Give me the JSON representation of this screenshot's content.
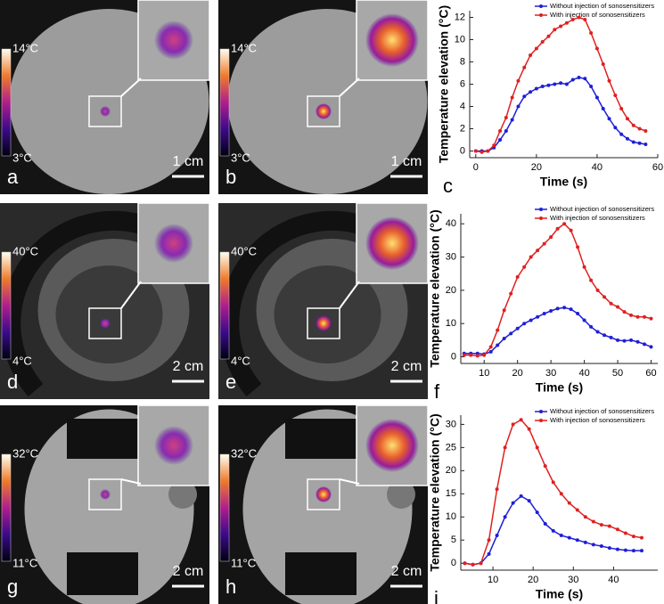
{
  "panels": [
    {
      "label": "a",
      "scale_bar": "1 cm",
      "cbar_max": "14°C",
      "cbar_min": "3°C"
    },
    {
      "label": "b",
      "scale_bar": "1 cm",
      "cbar_max": "14°C",
      "cbar_min": "3°C"
    },
    {
      "label": "d",
      "scale_bar": "2 cm",
      "cbar_max": "40°C",
      "cbar_min": "4°C"
    },
    {
      "label": "e",
      "scale_bar": "2 cm",
      "cbar_max": "40°C",
      "cbar_min": "4°C"
    },
    {
      "label": "g",
      "scale_bar": "2 cm",
      "cbar_max": "32°C",
      "cbar_min": "11°C"
    },
    {
      "label": "h",
      "scale_bar": "2 cm",
      "cbar_max": "32°C",
      "cbar_min": "11°C"
    }
  ],
  "chart_data": [
    {
      "type": "line",
      "label": "c",
      "xlabel": "Time (s)",
      "ylabel": "Temperature elevation (°C)",
      "x": [
        0,
        2,
        4,
        6,
        8,
        10,
        12,
        14,
        16,
        18,
        20,
        22,
        24,
        26,
        28,
        30,
        32,
        34,
        36,
        38,
        40,
        42,
        44,
        46,
        48,
        50,
        52,
        54,
        56
      ],
      "series": [
        {
          "name": "Without injection of sonosensitizers",
          "color": "#1f1fd6",
          "values": [
            0,
            0,
            0,
            0.3,
            1.0,
            1.8,
            2.8,
            4.0,
            4.9,
            5.3,
            5.6,
            5.8,
            5.9,
            6.0,
            6.1,
            6.0,
            6.4,
            6.6,
            6.5,
            5.8,
            4.8,
            3.8,
            2.9,
            2.1,
            1.5,
            1.1,
            0.8,
            0.7,
            0.6
          ]
        },
        {
          "name": "With injection of sonosensitizers",
          "color": "#e02020",
          "values": [
            0,
            -0.1,
            0,
            0.5,
            1.8,
            3.0,
            4.8,
            6.3,
            7.5,
            8.6,
            9.2,
            9.8,
            10.3,
            10.9,
            11.2,
            11.5,
            11.8,
            12.0,
            11.8,
            10.6,
            9.2,
            7.8,
            6.3,
            5.0,
            3.8,
            2.9,
            2.3,
            2.0,
            1.8
          ]
        }
      ],
      "xlim": [
        -2,
        60
      ],
      "xticks": [
        0,
        20,
        40,
        60
      ],
      "ylim": [
        -0.6,
        12.6
      ],
      "yticks": [
        0,
        2,
        4,
        6,
        8,
        10,
        12
      ]
    },
    {
      "type": "line",
      "label": "f",
      "xlabel": "Time (s)",
      "ylabel": "Temperature elevation (°C)",
      "x": [
        4,
        6,
        8,
        10,
        12,
        14,
        16,
        18,
        20,
        22,
        24,
        26,
        28,
        30,
        32,
        34,
        36,
        38,
        40,
        42,
        44,
        46,
        48,
        50,
        52,
        54,
        56,
        58,
        60
      ],
      "series": [
        {
          "name": "Without injection of sonosensitizers",
          "color": "#1f1fd6",
          "values": [
            1,
            1,
            1,
            0.8,
            1.5,
            3.5,
            5.5,
            7,
            8.5,
            10,
            11,
            12,
            13,
            13.8,
            14.5,
            14.8,
            14.3,
            13,
            11,
            9,
            7.5,
            6.5,
            5.8,
            5,
            4.8,
            5,
            4.5,
            3.8,
            3
          ]
        },
        {
          "name": "With injection of sonosensitizers",
          "color": "#e02020",
          "values": [
            0.5,
            0.5,
            0.3,
            0.5,
            3,
            8,
            14,
            19,
            24,
            27,
            30,
            32,
            34,
            36,
            38.5,
            40,
            38,
            33,
            27,
            23,
            20,
            18,
            16,
            15,
            13.5,
            12.5,
            12,
            12,
            11.5
          ]
        }
      ],
      "xlim": [
        3,
        62
      ],
      "xticks": [
        10,
        20,
        30,
        40,
        50,
        60
      ],
      "ylim": [
        -2,
        43
      ],
      "yticks": [
        0,
        10,
        20,
        30,
        40
      ]
    },
    {
      "type": "line",
      "label": "i",
      "xlabel": "Time (s)",
      "ylabel": "Temperature elevation (°C)",
      "x": [
        3,
        5,
        7,
        9,
        11,
        13,
        15,
        17,
        19,
        21,
        23,
        25,
        27,
        29,
        31,
        33,
        35,
        37,
        39,
        41,
        43,
        45,
        47
      ],
      "series": [
        {
          "name": "Without injection of sonosensitizers",
          "color": "#1f1fd6",
          "values": [
            0,
            -0.3,
            0,
            2,
            6,
            10,
            13,
            14.5,
            13.5,
            11,
            8.5,
            7,
            6,
            5.5,
            5,
            4.5,
            4,
            3.7,
            3.3,
            3,
            2.8,
            2.7,
            2.7
          ]
        },
        {
          "name": "With injection of sonosensitizers",
          "color": "#e02020",
          "values": [
            0,
            -0.3,
            0,
            5,
            16,
            25,
            30,
            31,
            29,
            25,
            21,
            17.5,
            15,
            13,
            11.5,
            10,
            9,
            8.3,
            8,
            7.3,
            6.5,
            5.8,
            5.5
          ]
        }
      ],
      "xlim": [
        2,
        51
      ],
      "xticks": [
        10,
        20,
        30,
        40
      ],
      "ylim": [
        -1.5,
        32
      ],
      "yticks": [
        0,
        5,
        10,
        15,
        20,
        25,
        30
      ]
    }
  ]
}
